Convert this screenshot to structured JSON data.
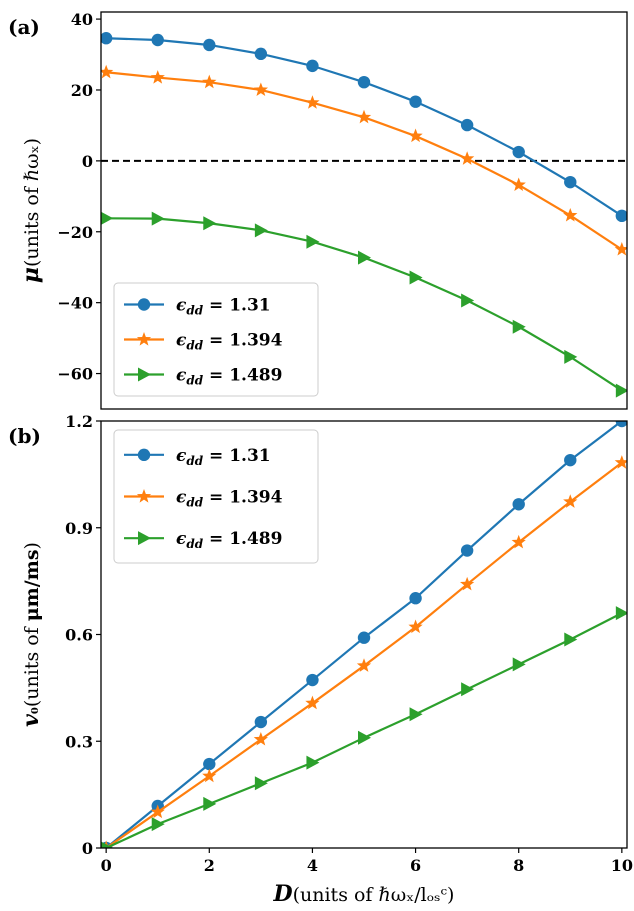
{
  "chart_data": [
    {
      "type": "line",
      "panel_label": "(a)",
      "x": [
        0,
        1,
        2,
        3,
        4,
        5,
        6,
        7,
        8,
        9,
        10
      ],
      "xlim": [
        -0.1,
        10.1
      ],
      "ylim": [
        -70,
        42
      ],
      "xticks": [],
      "yticks": [
        40,
        20,
        0,
        -20,
        -40,
        -60
      ],
      "ytick_labels": [
        "40",
        "20",
        "0",
        "−20",
        "−40",
        "−60"
      ],
      "ylabel": {
        "bold": "μ",
        "text": "(units of ℏωₓ)"
      },
      "reference_line": {
        "y": 0,
        "style": "dashed",
        "color": "#000000"
      },
      "legend_position": "lower-left",
      "grid": false,
      "series": [
        {
          "name": "ϵdd = 1.31",
          "color": "#1f77b4",
          "marker": "circle",
          "values": [
            34.6,
            34.1,
            32.7,
            30.2,
            26.8,
            22.2,
            16.7,
            10.1,
            2.5,
            -6.0,
            -15.5
          ]
        },
        {
          "name": "ϵdd = 1.394",
          "color": "#ff7f0e",
          "marker": "star",
          "values": [
            25.0,
            23.5,
            22.2,
            20.0,
            16.4,
            12.3,
            7.0,
            0.6,
            -6.8,
            -15.4,
            -25.0
          ]
        },
        {
          "name": "ϵdd = 1.489",
          "color": "#2ca02c",
          "marker": "triangle-right",
          "values": [
            -16.2,
            -16.3,
            -17.6,
            -19.6,
            -22.8,
            -27.3,
            -32.9,
            -39.4,
            -46.8,
            -55.3,
            -64.8
          ]
        }
      ]
    },
    {
      "type": "line",
      "panel_label": "(b)",
      "x": [
        0,
        1,
        2,
        3,
        4,
        5,
        6,
        7,
        8,
        9,
        10
      ],
      "xlim": [
        -0.1,
        10.1
      ],
      "ylim": [
        0,
        1.2
      ],
      "xticks": [
        0,
        2,
        4,
        6,
        8,
        10
      ],
      "xtick_labels": [
        "0",
        "2",
        "4",
        "6",
        "8",
        "10"
      ],
      "yticks": [
        0,
        0.3,
        0.6,
        0.9,
        1.2
      ],
      "ytick_labels": [
        "0",
        "0.3",
        "0.6",
        "0.9",
        "1.2"
      ],
      "ylabel": {
        "bold": "v₀",
        "text": "(units of ",
        "unit_bold": "μm/ms",
        "tail": ")"
      },
      "xlabel": {
        "bold": "D",
        "text": "(units of ℏωₓ/lₒₛᶜ)"
      },
      "legend_position": "upper-left",
      "grid": false,
      "series": [
        {
          "name": "ϵdd = 1.31",
          "color": "#1f77b4",
          "marker": "circle",
          "values": [
            0,
            0.118,
            0.236,
            0.354,
            0.472,
            0.591,
            0.702,
            0.836,
            0.966,
            1.09,
            1.2
          ]
        },
        {
          "name": "ϵdd = 1.394",
          "color": "#ff7f0e",
          "marker": "star",
          "values": [
            0,
            0.101,
            0.202,
            0.305,
            0.407,
            0.512,
            0.621,
            0.741,
            0.859,
            0.973,
            1.083
          ]
        },
        {
          "name": "ϵdd = 1.489",
          "color": "#2ca02c",
          "marker": "triangle-right",
          "values": [
            0,
            0.067,
            0.124,
            0.182,
            0.24,
            0.31,
            0.376,
            0.446,
            0.516,
            0.586,
            0.66
          ]
        }
      ]
    }
  ]
}
